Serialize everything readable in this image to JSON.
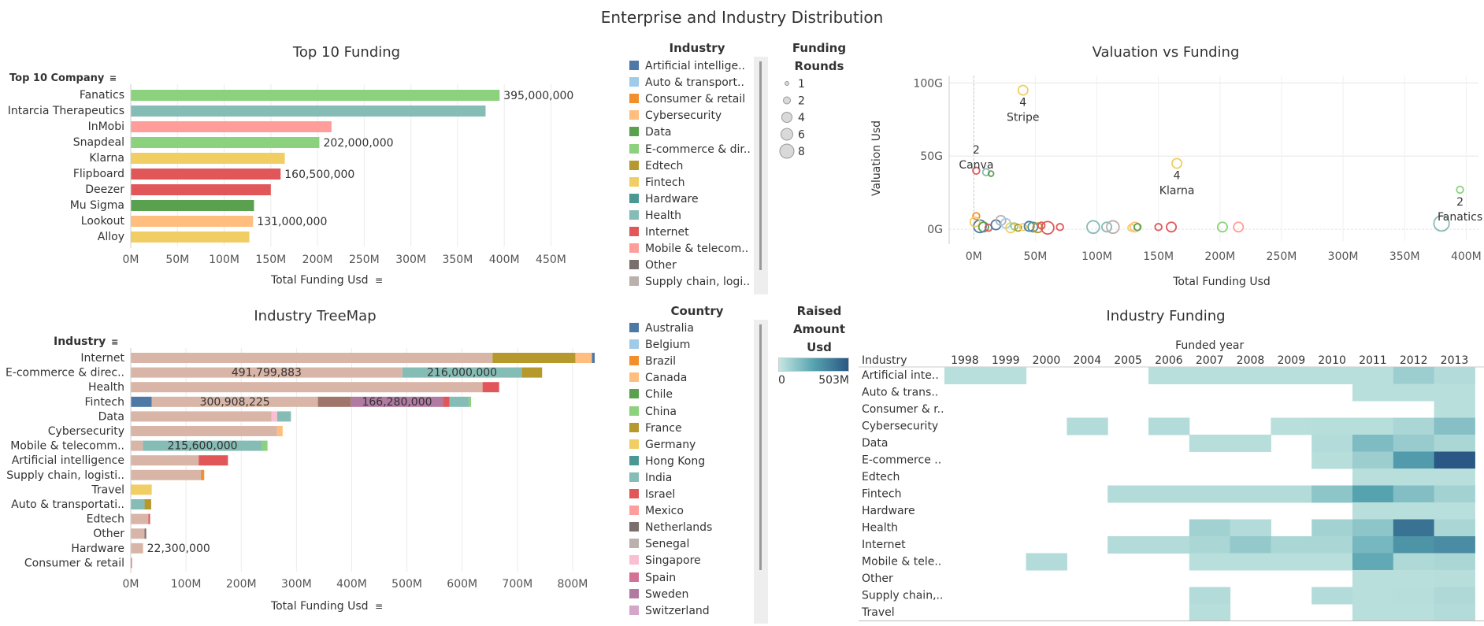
{
  "dashboard_title": "Enterprise and Industry Distribution",
  "top10": {
    "title": "Top 10 Funding",
    "row_header": "Top 10 Company",
    "axis_label": "Total Funding Usd",
    "ticks": [
      "0M",
      "50M",
      "100M",
      "150M",
      "200M",
      "250M",
      "300M",
      "350M",
      "400M",
      "450M"
    ]
  },
  "treemap": {
    "title": "Industry TreeMap",
    "row_header": "Industry",
    "axis_label": "Total Funding Usd",
    "ticks": [
      "0M",
      "100M",
      "200M",
      "300M",
      "400M",
      "500M",
      "600M",
      "700M",
      "800M"
    ]
  },
  "scatter": {
    "title": "Valuation vs Funding",
    "xlabel": "Total Funding Usd",
    "ylabel": "Valuation Usd",
    "xticks": [
      "0M",
      "50M",
      "100M",
      "150M",
      "200M",
      "250M",
      "300M",
      "350M",
      "400M"
    ],
    "yticks": [
      "0G",
      "50G",
      "100G"
    ]
  },
  "heatmap": {
    "title": "Industry Funding",
    "col_header": "Funded year",
    "row_header": "Industry"
  },
  "industry_legend": {
    "title": "Industry",
    "items": [
      {
        "label": "Artificial intellige..",
        "color": "#4e79a7"
      },
      {
        "label": "Auto & transport..",
        "color": "#a0cbe8"
      },
      {
        "label": "Consumer & retail",
        "color": "#f28e2b"
      },
      {
        "label": "Cybersecurity",
        "color": "#ffbe7d"
      },
      {
        "label": "Data",
        "color": "#59a14f"
      },
      {
        "label": "E-commerce & dir..",
        "color": "#8cd17d"
      },
      {
        "label": "Edtech",
        "color": "#b6992d"
      },
      {
        "label": "Fintech",
        "color": "#f1ce63"
      },
      {
        "label": "Hardware",
        "color": "#499894"
      },
      {
        "label": "Health",
        "color": "#86bcb6"
      },
      {
        "label": "Internet",
        "color": "#e15759"
      },
      {
        "label": "Mobile & telecom..",
        "color": "#ff9d9a"
      },
      {
        "label": "Other",
        "color": "#79706e"
      },
      {
        "label": "Supply chain, logi..",
        "color": "#bab0ac"
      }
    ]
  },
  "rounds_legend": {
    "title_line1": "Funding",
    "title_line2": "Rounds",
    "items": [
      "1",
      "2",
      "4",
      "6",
      "8"
    ]
  },
  "country_legend": {
    "title": "Country",
    "items": [
      {
        "label": "Australia",
        "color": "#4e79a7"
      },
      {
        "label": "Belgium",
        "color": "#a0cbe8"
      },
      {
        "label": "Brazil",
        "color": "#f28e2b"
      },
      {
        "label": "Canada",
        "color": "#ffbe7d"
      },
      {
        "label": "Chile",
        "color": "#59a14f"
      },
      {
        "label": "China",
        "color": "#8cd17d"
      },
      {
        "label": "France",
        "color": "#b6992d"
      },
      {
        "label": "Germany",
        "color": "#f1ce63"
      },
      {
        "label": "Hong Kong",
        "color": "#499894"
      },
      {
        "label": "India",
        "color": "#86bcb6"
      },
      {
        "label": "Israel",
        "color": "#e15759"
      },
      {
        "label": "Mexico",
        "color": "#ff9d9a"
      },
      {
        "label": "Netherlands",
        "color": "#79706e"
      },
      {
        "label": "Senegal",
        "color": "#bab0ac"
      },
      {
        "label": "Singapore",
        "color": "#fabfd2"
      },
      {
        "label": "Spain",
        "color": "#d37295"
      },
      {
        "label": "Sweden",
        "color": "#b07aa1"
      },
      {
        "label": "Switzerland",
        "color": "#d4a6c8"
      }
    ]
  },
  "raised_legend": {
    "title_line1": "Raised",
    "title_line2": "Amount",
    "title_line3": "Usd",
    "min_label": "0",
    "max_label": "503M",
    "color_min": "#c4e6e1",
    "color_max": "#2a5783"
  },
  "chart_data": [
    {
      "type": "bar",
      "title": "Top 10 Funding",
      "xlabel": "Total Funding Usd",
      "xlim": [
        0,
        480000000
      ],
      "categories": [
        "Fanatics",
        "Intarcia Therapeutics",
        "InMobi",
        "Snapdeal",
        "Klarna",
        "Flipboard",
        "Deezer",
        "Mu Sigma",
        "Lookout",
        "Alloy"
      ],
      "values": [
        395000000,
        380000000,
        215000000,
        202000000,
        165000000,
        160500000,
        150000000,
        132000000,
        131000000,
        127000000
      ],
      "colors": [
        "#8cd17d",
        "#86bcb6",
        "#ff9d9a",
        "#8cd17d",
        "#f1ce63",
        "#e15759",
        "#e15759",
        "#59a14f",
        "#ffbe7d",
        "#f1ce63"
      ],
      "data_labels": [
        "395,000,000",
        "",
        "",
        "202,000,000",
        "",
        "160,500,000",
        "",
        "",
        "131,000,000",
        ""
      ]
    },
    {
      "type": "bar",
      "stacked": true,
      "title": "Industry TreeMap",
      "xlabel": "Total Funding Usd",
      "xlim": [
        0,
        850000000
      ],
      "categories": [
        "Internet",
        "E-commerce & direc..",
        "Health",
        "Fintech",
        "Data",
        "Cybersecurity",
        "Mobile & telecomm..",
        "Artificial intelligence",
        "Supply chain, logisti..",
        "Travel",
        "Auto & transportati..",
        "Edtech",
        "Other",
        "Hardware",
        "Consumer & retail"
      ],
      "series_colors": {
        "India": "#bab0ac",
        "Germany": "#f1ce63",
        "Edtech": "#b6992d",
        "Hong Kong": "#86bcb6",
        "Australia": "#4e79a7",
        "Israel": "#e15759",
        "Sweden": "#b07aa1",
        "Netherlands": "#a0756a",
        "Canada": "#ffbe7d",
        "Brazil": "#f28e2b",
        "China": "#8cd17d"
      },
      "stacks": [
        [
          {
            "country": "India",
            "value": 655000000,
            "color": "#d8b5a6"
          },
          {
            "country": "France",
            "value": 150000000,
            "color": "#b6992d"
          },
          {
            "country": "Canada",
            "value": 30000000,
            "color": "#ffbe7d"
          },
          {
            "country": "Australia",
            "value": 5000000,
            "color": "#4e79a7"
          }
        ],
        [
          {
            "country": "India",
            "value": 491799883,
            "color": "#d8b5a6",
            "label": "491,799,883"
          },
          {
            "country": "Hong Kong",
            "value": 216000000,
            "color": "#86bcb6",
            "label": "216,000,000"
          },
          {
            "country": "France",
            "value": 37000000,
            "color": "#b6992d"
          }
        ],
        [
          {
            "country": "India",
            "value": 637000000,
            "color": "#d8b5a6"
          },
          {
            "country": "Israel",
            "value": 30000000,
            "color": "#e15759"
          }
        ],
        [
          {
            "country": "Australia",
            "value": 38000000,
            "color": "#4e79a7"
          },
          {
            "country": "India",
            "value": 300908225,
            "color": "#d8b5a6",
            "label": "300,908,225"
          },
          {
            "country": "Netherlands",
            "value": 60000000,
            "color": "#a0756a"
          },
          {
            "country": "Sweden",
            "value": 166280000,
            "color": "#b07aa1",
            "label": "166,280,000"
          },
          {
            "country": "Israel",
            "value": 12000000,
            "color": "#e15759"
          },
          {
            "country": "Hong Kong",
            "value": 35000000,
            "color": "#86bcb6"
          },
          {
            "country": "China",
            "value": 4000000,
            "color": "#8cd17d"
          }
        ],
        [
          {
            "country": "India",
            "value": 255000000,
            "color": "#d8b5a6"
          },
          {
            "country": "Singapore",
            "value": 10000000,
            "color": "#fabfd2"
          },
          {
            "country": "Hong Kong",
            "value": 25000000,
            "color": "#86bcb6"
          }
        ],
        [
          {
            "country": "India",
            "value": 265000000,
            "color": "#d8b5a6"
          },
          {
            "country": "Canada",
            "value": 10000000,
            "color": "#ffbe7d"
          }
        ],
        [
          {
            "country": "India",
            "value": 22000000,
            "color": "#d8b5a6"
          },
          {
            "country": "Hong Kong",
            "value": 215600000,
            "color": "#86bcb6",
            "label": "215,600,000"
          },
          {
            "country": "China",
            "value": 10000000,
            "color": "#8cd17d"
          }
        ],
        [
          {
            "country": "India",
            "value": 123000000,
            "color": "#d8b5a6"
          },
          {
            "country": "Israel",
            "value": 53000000,
            "color": "#e15759"
          }
        ],
        [
          {
            "country": "India",
            "value": 127000000,
            "color": "#d8b5a6"
          },
          {
            "country": "Brazil",
            "value": 6000000,
            "color": "#f28e2b"
          }
        ],
        [
          {
            "country": "Germany",
            "value": 38000000,
            "color": "#f1ce63"
          }
        ],
        [
          {
            "country": "Hong Kong",
            "value": 25000000,
            "color": "#86bcb6"
          },
          {
            "country": "France",
            "value": 12000000,
            "color": "#b6992d"
          }
        ],
        [
          {
            "country": "India",
            "value": 32000000,
            "color": "#d8b5a6"
          },
          {
            "country": "Israel",
            "value": 3000000,
            "color": "#e15759"
          }
        ],
        [
          {
            "country": "India",
            "value": 25000000,
            "color": "#d8b5a6"
          },
          {
            "country": "Netherlands",
            "value": 3000000,
            "color": "#79706e"
          }
        ],
        [
          {
            "country": "India",
            "value": 22300000,
            "color": "#d8b5a6",
            "outside_label": "22,300,000"
          }
        ],
        [
          {
            "country": "Israel",
            "value": 2000000,
            "color": "#e15759"
          }
        ]
      ]
    },
    {
      "type": "scatter",
      "title": "Valuation vs Funding",
      "xlabel": "Total Funding Usd",
      "ylabel": "Valuation Usd",
      "xlim": [
        -20000000,
        410000000
      ],
      "ylim": [
        -8000000000,
        105000000000
      ],
      "labeled_points": [
        {
          "x": 40000000,
          "y": 95000000000,
          "rounds": 4,
          "name": "Stripe",
          "color": "#f1ce63"
        },
        {
          "x": 2000000,
          "y": 40000000000,
          "rounds": 2,
          "name": "Canva",
          "color": "#e15759"
        },
        {
          "x": 165000000,
          "y": 45000000000,
          "rounds": 4,
          "name": "Klarna",
          "color": "#f1ce63"
        },
        {
          "x": 395000000,
          "y": 27000000000,
          "rounds": 2,
          "name": "Fanatics",
          "color": "#8cd17d"
        }
      ],
      "points": [
        {
          "x": 10000000,
          "y": 39000000000,
          "rounds": 2,
          "color": "#86bcb6"
        },
        {
          "x": 14000000,
          "y": 38000000000,
          "rounds": 1,
          "color": "#59a14f"
        },
        {
          "x": 380000000,
          "y": 4000000000,
          "rounds": 8,
          "color": "#86bcb6"
        },
        {
          "x": 5000000,
          "y": 2000000000,
          "rounds": 6,
          "color": "#4e79a7"
        },
        {
          "x": 2000000,
          "y": 9000000000,
          "rounds": 2,
          "color": "#f28e2b"
        },
        {
          "x": 1000000,
          "y": 5000000000,
          "rounds": 4,
          "color": "#f1ce63"
        },
        {
          "x": 8000000,
          "y": 1500000000,
          "rounds": 4,
          "color": "#59a14f"
        },
        {
          "x": 12000000,
          "y": 1000000000,
          "rounds": 2,
          "color": "#e15759"
        },
        {
          "x": 18000000,
          "y": 3000000000,
          "rounds": 4,
          "color": "#4e79a7"
        },
        {
          "x": 22000000,
          "y": 6000000000,
          "rounds": 4,
          "color": "#bab0ac"
        },
        {
          "x": 26000000,
          "y": 4000000000,
          "rounds": 4,
          "color": "#a0cbe8"
        },
        {
          "x": 30000000,
          "y": 1000000000,
          "rounds": 4,
          "color": "#f1ce63"
        },
        {
          "x": 33000000,
          "y": 2000000000,
          "rounds": 2,
          "color": "#8cd17d"
        },
        {
          "x": 36000000,
          "y": 1000000000,
          "rounds": 2,
          "color": "#b6992d"
        },
        {
          "x": 40000000,
          "y": 1500000000,
          "rounds": 2,
          "color": "#f1ce63"
        },
        {
          "x": 45000000,
          "y": 2000000000,
          "rounds": 4,
          "color": "#4e79a7"
        },
        {
          "x": 48000000,
          "y": 1500000000,
          "rounds": 4,
          "color": "#499894"
        },
        {
          "x": 52000000,
          "y": 1000000000,
          "rounds": 4,
          "color": "#b6992d"
        },
        {
          "x": 55000000,
          "y": 2500000000,
          "rounds": 2,
          "color": "#e15759"
        },
        {
          "x": 60000000,
          "y": 1000000000,
          "rounds": 6,
          "color": "#e15759"
        },
        {
          "x": 70000000,
          "y": 1500000000,
          "rounds": 2,
          "color": "#e15759"
        },
        {
          "x": 97000000,
          "y": 1500000000,
          "rounds": 6,
          "color": "#86bcb6"
        },
        {
          "x": 108000000,
          "y": 1500000000,
          "rounds": 4,
          "color": "#86bcb6"
        },
        {
          "x": 113000000,
          "y": 1500000000,
          "rounds": 6,
          "color": "#bab0ac"
        },
        {
          "x": 128000000,
          "y": 1000000000,
          "rounds": 2,
          "color": "#f1ce63"
        },
        {
          "x": 131000000,
          "y": 1500000000,
          "rounds": 4,
          "color": "#ffbe7d"
        },
        {
          "x": 133000000,
          "y": 1500000000,
          "rounds": 2,
          "color": "#59a14f"
        },
        {
          "x": 150000000,
          "y": 1500000000,
          "rounds": 2,
          "color": "#e15759"
        },
        {
          "x": 160500000,
          "y": 1500000000,
          "rounds": 4,
          "color": "#e15759"
        },
        {
          "x": 202000000,
          "y": 1500000000,
          "rounds": 4,
          "color": "#8cd17d"
        },
        {
          "x": 215000000,
          "y": 1500000000,
          "rounds": 4,
          "color": "#ff9d9a"
        }
      ]
    },
    {
      "type": "heatmap",
      "title": "Industry Funding",
      "x": [
        "1998",
        "1999",
        "2000",
        "2004",
        "2005",
        "2006",
        "2007",
        "2008",
        "2009",
        "2010",
        "2011",
        "2012",
        "2013"
      ],
      "y": [
        "Artificial inte..",
        "Auto & trans..",
        "Consumer & r..",
        "Cybersecurity",
        "Data",
        "E-commerce ..",
        "Edtech",
        "Fintech",
        "Hardware",
        "Health",
        "Internet",
        "Mobile & tele..",
        "Other",
        "Supply chain,..",
        "Travel"
      ],
      "value_unit": "fraction of 503M",
      "values": [
        [
          0.05,
          0.05,
          null,
          null,
          null,
          0.05,
          0.05,
          0.05,
          0.05,
          0.05,
          0.05,
          0.18,
          0.08
        ],
        [
          null,
          null,
          null,
          null,
          null,
          null,
          null,
          null,
          null,
          null,
          0.05,
          0.05,
          0.05
        ],
        [
          null,
          null,
          null,
          null,
          null,
          null,
          null,
          null,
          null,
          null,
          null,
          null,
          0.05
        ],
        [
          null,
          null,
          null,
          0.08,
          null,
          0.08,
          null,
          null,
          0.05,
          0.06,
          0.06,
          0.12,
          0.28
        ],
        [
          null,
          null,
          null,
          null,
          null,
          null,
          0.06,
          0.06,
          null,
          0.08,
          0.32,
          0.2,
          0.12
        ],
        [
          null,
          null,
          null,
          null,
          null,
          null,
          null,
          null,
          null,
          0.06,
          0.18,
          0.55,
          1.0
        ],
        [
          null,
          null,
          null,
          null,
          null,
          null,
          null,
          null,
          null,
          null,
          0.05,
          0.05,
          0.05
        ],
        [
          null,
          null,
          null,
          null,
          0.08,
          0.08,
          0.08,
          0.08,
          0.08,
          0.25,
          0.5,
          0.3,
          0.15
        ],
        [
          null,
          null,
          null,
          null,
          null,
          null,
          null,
          null,
          null,
          null,
          0.05,
          0.05,
          0.05
        ],
        [
          null,
          null,
          null,
          null,
          null,
          null,
          0.16,
          0.08,
          null,
          0.15,
          0.25,
          0.82,
          0.12
        ],
        [
          null,
          null,
          null,
          null,
          0.08,
          0.08,
          0.12,
          0.22,
          0.12,
          0.12,
          0.35,
          0.6,
          0.65
        ],
        [
          null,
          null,
          0.08,
          null,
          null,
          null,
          0.05,
          0.05,
          0.05,
          0.05,
          0.45,
          0.1,
          0.12
        ],
        [
          null,
          null,
          null,
          null,
          null,
          null,
          null,
          null,
          null,
          null,
          0.05,
          0.05,
          0.06
        ],
        [
          null,
          null,
          null,
          null,
          null,
          null,
          0.08,
          null,
          null,
          0.08,
          0.05,
          0.06,
          0.1
        ],
        [
          null,
          null,
          null,
          null,
          null,
          null,
          0.06,
          null,
          null,
          null,
          0.05,
          0.05,
          0.08
        ]
      ]
    }
  ]
}
